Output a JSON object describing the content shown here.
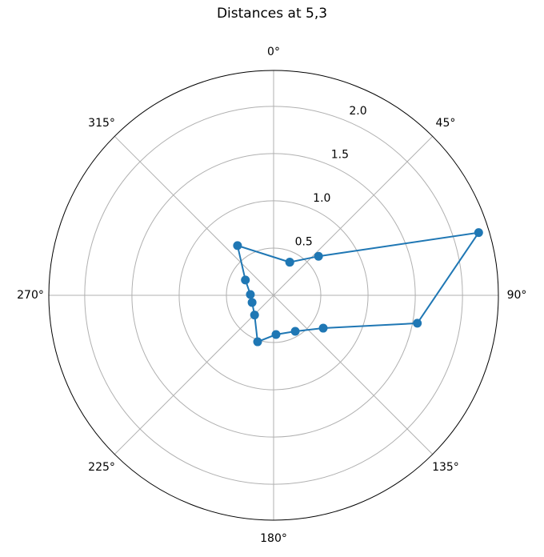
{
  "chart_data": {
    "type": "polar",
    "title": "Distances at 5,3",
    "x": [
      26,
      49,
      73,
      101,
      123.5,
      149,
      176.5,
      199,
      224,
      251.6,
      272,
      298.5,
      324,
      26
    ],
    "series": [
      {
        "color": "#1f77b4",
        "values": [
          0.39,
          0.63,
          2.27,
          1.55,
          0.63,
          0.445,
          0.416,
          0.52,
          0.29,
          0.24,
          0.246,
          0.34,
          0.65,
          0.39
        ]
      }
    ],
    "rlim": [
      0,
      2.38
    ],
    "rticks": [
      0.5,
      {
        "value": 1,
        "label": "1.0"
      },
      1.5,
      {
        "value": 2,
        "label": "2.0"
      }
    ],
    "xticks": [
      {
        "value": 0,
        "label": "0°"
      },
      {
        "value": 45,
        "label": "45°"
      },
      {
        "value": 90,
        "label": "90°"
      },
      {
        "value": 135,
        "label": "135°"
      },
      {
        "value": 180,
        "label": "180°"
      },
      {
        "value": 225,
        "label": "225°"
      },
      {
        "value": 270,
        "label": "270°"
      },
      {
        "value": 315,
        "label": "315°"
      }
    ],
    "grid": true
  }
}
